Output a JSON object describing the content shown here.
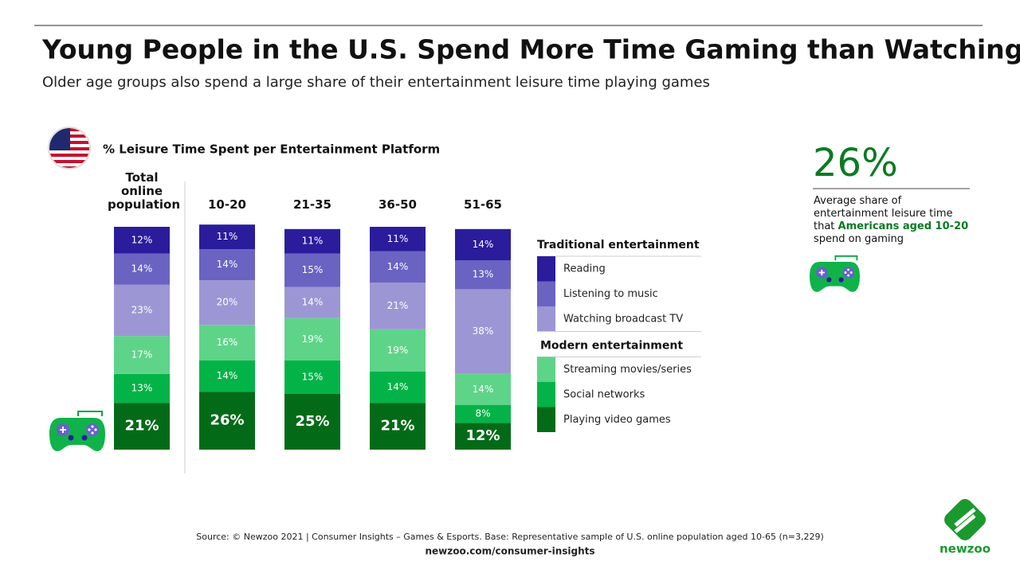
{
  "chart_data": {
    "type": "stacked-bar-100",
    "title": "Young People in the U.S. Spend More Time Gaming than Watching TV",
    "subtitle": "Older age groups also spend a large share of their entertainment leisure time playing games",
    "chart_title": "% Leisure Time Spent per Entertainment Platform",
    "categories": [
      "Total online population",
      "10-20",
      "21-35",
      "36-50",
      "51-65"
    ],
    "ylim": [
      0,
      100
    ],
    "legend_groups": [
      "Traditional entertainment",
      "Modern entertainment"
    ],
    "series": [
      {
        "name": "Reading",
        "color": "#2b1c9c",
        "values": [
          12,
          11,
          11,
          11,
          14
        ],
        "value_labels": [
          "12%",
          "11%",
          "11%",
          "11%",
          "14%"
        ]
      },
      {
        "name": "Listening to music",
        "color": "#6a63c2",
        "values": [
          14,
          14,
          15,
          14,
          13
        ],
        "value_labels": [
          "14%",
          "14%",
          "15%",
          "14%",
          "13%"
        ]
      },
      {
        "name": "Watching broadcast TV",
        "color": "#9c97d4",
        "values": [
          23,
          20,
          14,
          21,
          38
        ],
        "value_labels": [
          "23%",
          "20%",
          "14%",
          "21%",
          "38%"
        ]
      },
      {
        "name": "Streaming movies/series",
        "color": "#5ed489",
        "values": [
          17,
          16,
          19,
          19,
          14
        ],
        "value_labels": [
          "17%",
          "16%",
          "19%",
          "19%",
          "14%"
        ]
      },
      {
        "name": "Social networks",
        "color": "#04b347",
        "values": [
          13,
          14,
          15,
          14,
          8
        ],
        "value_labels": [
          "13%",
          "14%",
          "15%",
          "14%",
          "8%"
        ]
      },
      {
        "name": "Playing video games",
        "color": "#036b17",
        "values": [
          21,
          26,
          25,
          21,
          12
        ],
        "value_labels": [
          "21%",
          "26%",
          "25%",
          "21%",
          "12%"
        ]
      }
    ],
    "callout": {
      "value_label": "26%",
      "text_before": "Average share of entertainment leisure time that ",
      "highlight": "Americans aged 10-20",
      "text_after": " spend on gaming"
    },
    "source": "Source: © Newzoo 2021 | Consumer Insights – Games & Esports. Base: Representative sample of U.S. online population aged 10-65 (n=3,229)",
    "url": "newzoo.com/consumer-insights",
    "logo": "newzoo"
  }
}
